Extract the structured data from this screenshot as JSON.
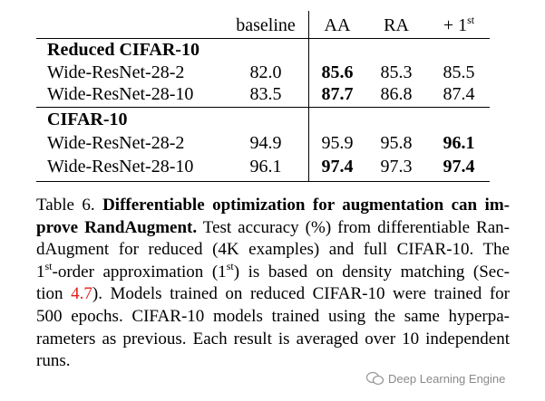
{
  "table": {
    "header": [
      "baseline",
      "AA",
      "RA",
      {
        "text": "+ 1",
        "sup": "st"
      }
    ],
    "sections": [
      {
        "title": "Reduced CIFAR-10",
        "rows": [
          {
            "label": "Wide-ResNet-28-2",
            "values": [
              "82.0",
              "85.6",
              "85.3",
              "85.5"
            ],
            "bold": [
              false,
              true,
              false,
              false
            ]
          },
          {
            "label": "Wide-ResNet-28-10",
            "values": [
              "83.5",
              "87.7",
              "86.8",
              "87.4"
            ],
            "bold": [
              false,
              true,
              false,
              false
            ]
          }
        ]
      },
      {
        "title": "CIFAR-10",
        "rows": [
          {
            "label": "Wide-ResNet-28-2",
            "values": [
              "94.9",
              "95.9",
              "95.8",
              "96.1"
            ],
            "bold": [
              false,
              false,
              false,
              true
            ]
          },
          {
            "label": "Wide-ResNet-28-10",
            "values": [
              "96.1",
              "97.4",
              "97.3",
              "97.4"
            ],
            "bold": [
              false,
              true,
              false,
              true
            ]
          }
        ]
      }
    ]
  },
  "caption": [
    [
      {
        "text": "Table 6. "
      },
      {
        "text": "Differentiable optimization for augmentation can im-",
        "bold": true
      }
    ],
    [
      {
        "text": "prove RandAugment.",
        "bold": true
      },
      {
        "text": " Test accuracy (%) from differentiable Ran-"
      }
    ],
    [
      {
        "text": "dAugment for reduced (4K examples) and full CIFAR-10.  The"
      }
    ],
    [
      {
        "text": "1"
      },
      {
        "text": "st",
        "sup": true
      },
      {
        "text": "-order approximation (1"
      },
      {
        "text": "st",
        "sup": true
      },
      {
        "text": ") is based on density matching (Sec-"
      }
    ],
    [
      {
        "text": "tion "
      },
      {
        "text": "4.7",
        "link": true
      },
      {
        "text": ").  Models trained on reduced CIFAR-10 were trained for"
      }
    ],
    [
      {
        "text": "500 epochs.  CIFAR-10 models trained using the same hyperpa-"
      }
    ],
    [
      {
        "text": "rameters as previous. Each result is averaged over 10 independent"
      }
    ],
    [
      {
        "text": "runs."
      }
    ]
  ],
  "watermark": "Deep Learning Engine"
}
